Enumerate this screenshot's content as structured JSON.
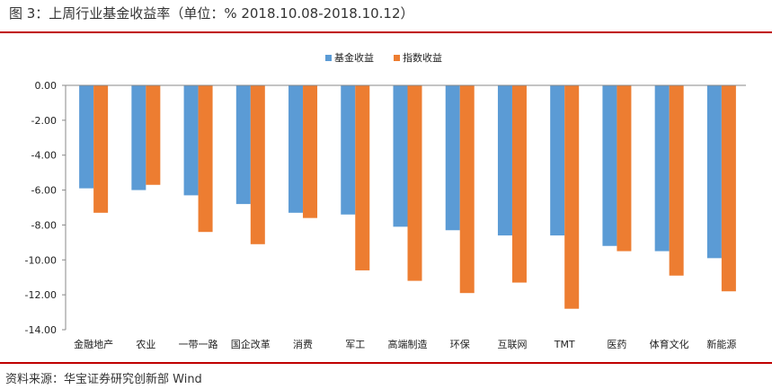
{
  "figure": {
    "title": "图 3：上周行业基金收益率（单位：% 2018.10.08-2018.10.12）",
    "source": "资料来源：华宝证券研究创新部 Wind"
  },
  "colors": {
    "fund": "#5b9bd5",
    "index": "#ed7d31",
    "rule": "#c00000"
  },
  "chart_data": {
    "type": "bar",
    "title": "",
    "xlabel": "",
    "ylabel": "",
    "ylim": [
      -14,
      0
    ],
    "yticks": [
      "0.00",
      "-2.00",
      "-4.00",
      "-6.00",
      "-8.00",
      "-10.00",
      "-12.00",
      "-14.00"
    ],
    "legend_position": "top-center",
    "grid": false,
    "categories": [
      "金融地产",
      "农业",
      "一带一路",
      "国企改革",
      "消费",
      "军工",
      "高端制造",
      "环保",
      "互联网",
      "TMT",
      "医药",
      "体育文化",
      "新能源"
    ],
    "series": [
      {
        "name": "基金收益",
        "color": "#5b9bd5",
        "values": [
          -5.9,
          -6.0,
          -6.3,
          -6.8,
          -7.3,
          -7.4,
          -8.1,
          -8.3,
          -8.6,
          -8.6,
          -9.2,
          -9.5,
          -9.9
        ]
      },
      {
        "name": "指数收益",
        "color": "#ed7d31",
        "values": [
          -7.3,
          -5.7,
          -8.4,
          -9.1,
          -7.6,
          -10.6,
          -11.2,
          -11.9,
          -11.3,
          -12.8,
          -9.5,
          -10.9,
          -11.8
        ]
      }
    ]
  }
}
